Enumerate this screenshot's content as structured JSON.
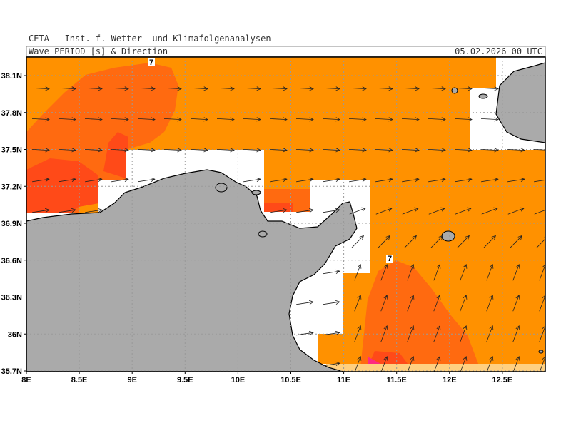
{
  "header": {
    "source": "CETA – Inst. f. Wetter– und Klimafolgenanalysen –",
    "title": "Wave_PERIOD_[s]_&_Direction",
    "date": "05.02.2026 00 UTC"
  },
  "axes": {
    "lat_labels": [
      "38.1N",
      "37.8N",
      "37.5N",
      "37.2N",
      "36.9N",
      "36.6N",
      "36.3N",
      "36N",
      "35.7N"
    ],
    "lon_labels": [
      "8E",
      "8.5E",
      "9E",
      "9.5E",
      "10E",
      "10.5E",
      "11E",
      "11.5E",
      "12E",
      "12.5E"
    ]
  },
  "contour_labels": [
    "7",
    "7"
  ]
}
